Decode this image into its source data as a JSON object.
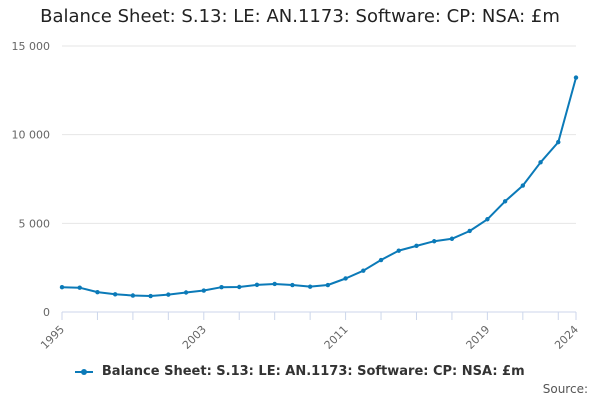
{
  "chart_data": {
    "type": "line",
    "title": "Balance Sheet: S.13: LE: AN.1173: Software: CP: NSA: £m",
    "xlabel": "",
    "ylabel": "",
    "x": [
      1995,
      1996,
      1997,
      1998,
      1999,
      2000,
      2001,
      2002,
      2003,
      2004,
      2005,
      2006,
      2007,
      2008,
      2009,
      2010,
      2011,
      2012,
      2013,
      2014,
      2015,
      2016,
      2017,
      2018,
      2019,
      2020,
      2021,
      2022,
      2023,
      2024
    ],
    "x_tick_labels": [
      "1995",
      "2003",
      "2011",
      "2019",
      "2024"
    ],
    "y_tick_labels": [
      "0",
      "5 000",
      "10 000",
      "15 000"
    ],
    "y_ticks": [
      0,
      5000,
      10000,
      15000
    ],
    "xlim": [
      1995,
      2024
    ],
    "ylim": [
      0,
      15000
    ],
    "grid": "horizontal",
    "legend": "bottom-center",
    "series": [
      {
        "name": "Balance Sheet: S.13: LE: AN.1173: Software: CP: NSA: £m",
        "color": "#0b7ab8",
        "values": [
          1400,
          1370,
          1120,
          1000,
          930,
          900,
          980,
          1100,
          1210,
          1400,
          1410,
          1530,
          1580,
          1520,
          1430,
          1520,
          1890,
          2330,
          2930,
          3460,
          3730,
          3990,
          4130,
          4570,
          5230,
          6240,
          7130,
          8440,
          9580,
          13220
        ]
      }
    ]
  },
  "source_label": "Source:"
}
